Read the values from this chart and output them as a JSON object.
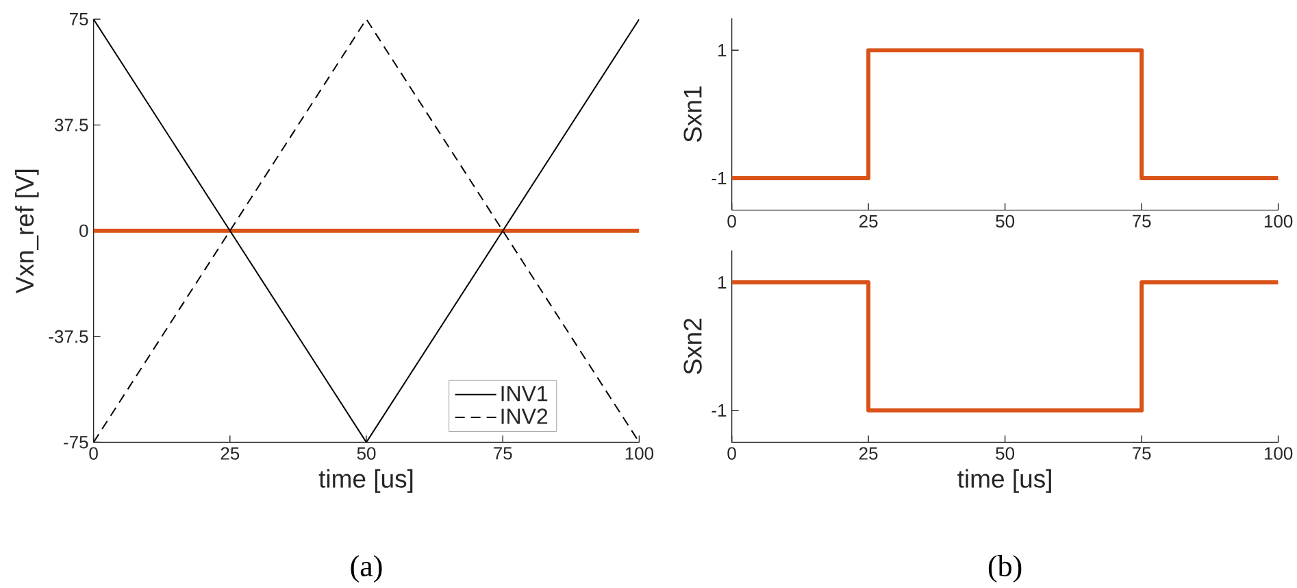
{
  "chart_data": [
    {
      "type": "line",
      "xlabel": "time [us]",
      "ylabel": "Vxn_ref [V]",
      "x": [
        0,
        50,
        100
      ],
      "xlim": [
        0,
        100
      ],
      "xticks": [
        0,
        25,
        50,
        75,
        100
      ],
      "ylim": [
        -75,
        75
      ],
      "yticks": [
        -75,
        -37.5,
        0,
        37.5,
        75
      ],
      "legend": "bottom right",
      "series": [
        {
          "color": "#d95319",
          "values": [
            0,
            0,
            0
          ]
        },
        {
          "name": "INV1",
          "color": "#000000",
          "line_style": "solid",
          "values": [
            75,
            -75,
            75
          ]
        },
        {
          "name": "INV2",
          "color": "#000000",
          "line_style": "dashed",
          "values": [
            -75,
            75,
            -75
          ]
        }
      ],
      "annotations": [
        "(a)"
      ]
    },
    {
      "type": "step",
      "ylabel": "Sxn1",
      "x": [
        0,
        25,
        75,
        100
      ],
      "values": [
        -1,
        1,
        -1,
        -1
      ],
      "color": "#d95319",
      "xlim": [
        0,
        100
      ],
      "xticks": [
        0,
        25,
        50,
        75,
        100
      ],
      "ylim": [
        -1.5,
        1.5
      ],
      "yticks": [
        -1,
        1
      ]
    },
    {
      "type": "step",
      "xlabel": "time [us]",
      "ylabel": "Sxn2",
      "x": [
        0,
        25,
        75,
        100
      ],
      "values": [
        1,
        -1,
        1,
        1
      ],
      "color": "#d95319",
      "xlim": [
        0,
        100
      ],
      "xticks": [
        0,
        25,
        50,
        75,
        100
      ],
      "ylim": [
        -1.5,
        1.5
      ],
      "yticks": [
        -1,
        1
      ],
      "annotations": [
        "(b)"
      ]
    }
  ]
}
